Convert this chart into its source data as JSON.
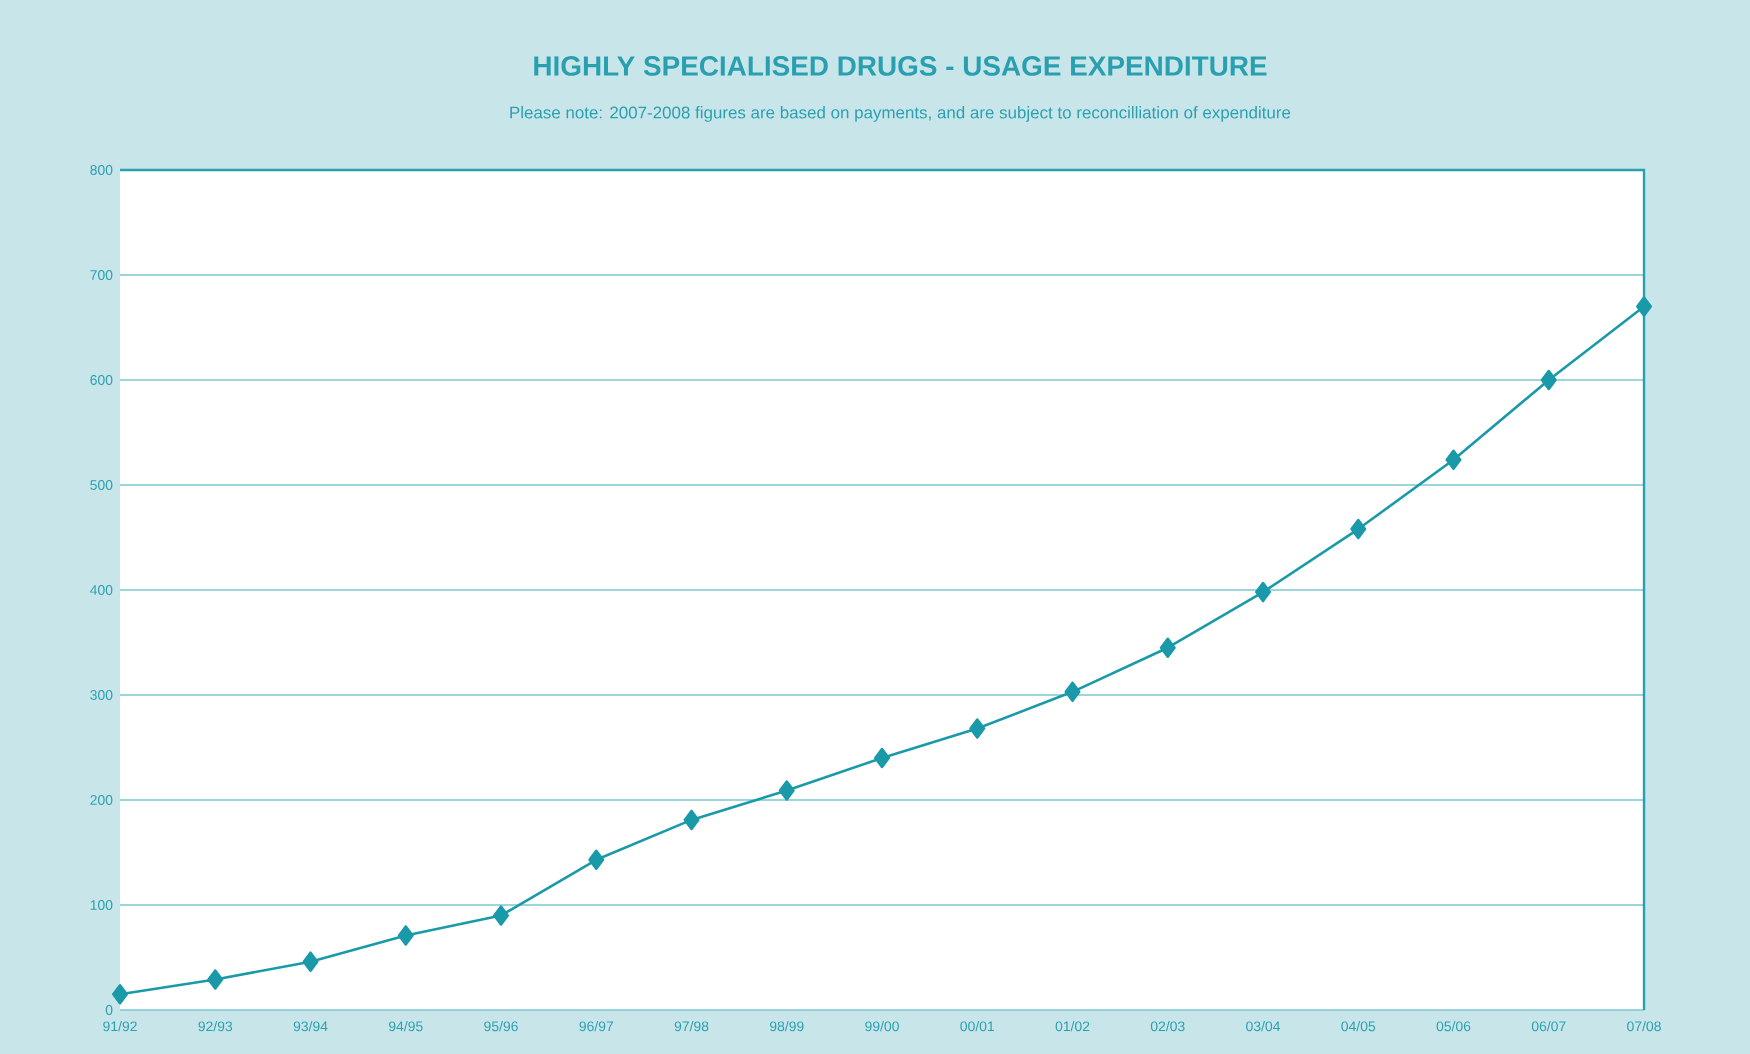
{
  "chart_data": {
    "type": "line",
    "title": "HIGHLY SPECIALISED DRUGS - USAGE EXPENDITURE",
    "subtitle": "Please note: 2007-2008 figures are based on payments, and are subject to reconcilliation of expenditure",
    "categories": [
      "91/92",
      "92/93",
      "93/94",
      "94/95",
      "95/96",
      "96/97",
      "97/98",
      "98/99",
      "99/00",
      "00/01",
      "01/02",
      "02/03",
      "03/04",
      "04/05",
      "05/06",
      "06/07",
      "07/08"
    ],
    "series": [
      {
        "color": "#1a9aa8",
        "values": [
          15,
          29,
          46,
          71,
          90,
          143,
          181,
          209,
          240,
          268,
          303,
          345,
          398,
          458,
          524,
          600,
          670
        ]
      }
    ],
    "ylim": [
      0,
      800
    ],
    "yticks": [
      0,
      100,
      200,
      300,
      400,
      500,
      600,
      700,
      800
    ],
    "grid": "y",
    "marker": "diamond",
    "line_style": "solid"
  }
}
